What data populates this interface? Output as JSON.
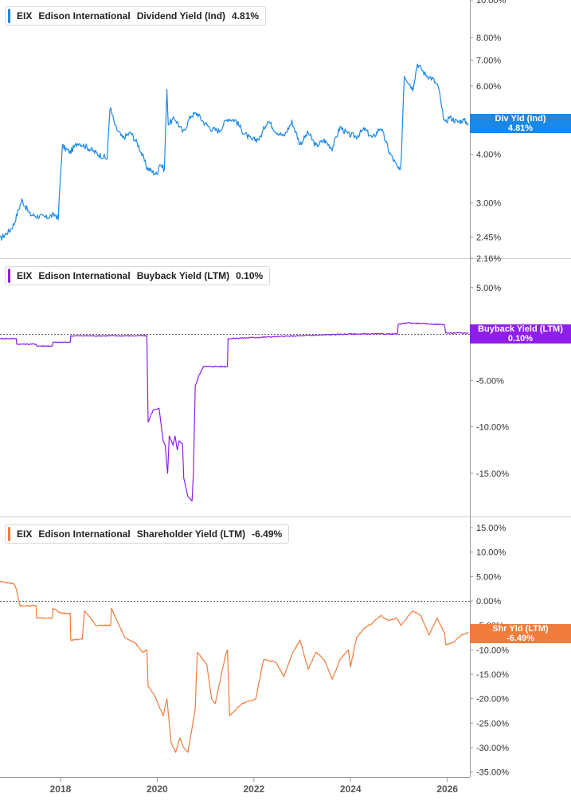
{
  "colors": {
    "dividend": "#1a88e8",
    "buyback": "#8f1fe8",
    "shareholder": "#f07c3c",
    "grid": "#d8d8d8",
    "zero_line": "#666666"
  },
  "x_axis": {
    "ticks": [
      "2018",
      "2020",
      "2022",
      "2024",
      "2026"
    ],
    "range": [
      "2016-10-01",
      "2026-06-20"
    ]
  },
  "panels": [
    {
      "legend": {
        "ticker": "EIX",
        "company": "Edison International",
        "metric": "Dividend Yield (Ind)",
        "value": "4.81%"
      },
      "badge": {
        "label": "Div Yld (Ind)",
        "value": "4.81%"
      }
    },
    {
      "legend": {
        "ticker": "EIX",
        "company": "Edison International",
        "metric": "Buyback Yield (LTM)",
        "value": "0.10%"
      },
      "badge": {
        "label": "Buyback Yield (LTM)",
        "value": "0.10%"
      }
    },
    {
      "legend": {
        "ticker": "EIX",
        "company": "Edison International",
        "metric": "Shareholder Yield (LTM)",
        "value": "-6.49%"
      },
      "badge": {
        "label": "Shr Yld (LTM)",
        "value": "-6.49%"
      }
    }
  ],
  "chart_data": [
    {
      "type": "line",
      "title": "EIX Edison International Dividend Yield (Ind)",
      "y_scale": "log",
      "y_ticks": [
        "10.00%",
        "8.00%",
        "7.00%",
        "6.00%",
        "4.00%",
        "3.00%",
        "2.45%",
        "2.16%"
      ],
      "y_tick_values": [
        10.0,
        8.0,
        7.0,
        6.0,
        4.0,
        3.0,
        2.45,
        2.16
      ],
      "series": [
        {
          "name": "Dividend Yield (Ind)",
          "x": [
            "2016-10-01",
            "2016-12-15",
            "2017-01-15",
            "2017-03-15",
            "2017-05-15",
            "2017-06-30",
            "2017-09-15",
            "2017-11-25",
            "2017-12-15",
            "2018-01-15",
            "2018-03-15",
            "2018-05-15",
            "2018-08-01",
            "2018-10-15",
            "2018-12-20",
            "2019-01-10",
            "2019-02-20",
            "2019-04-15",
            "2019-06-15",
            "2019-08-15",
            "2019-10-15",
            "2019-11-30",
            "2019-12-30",
            "2020-01-20",
            "2020-02-25",
            "2020-03-15",
            "2020-03-25",
            "2020-05-15",
            "2020-07-15",
            "2020-09-15",
            "2020-10-30",
            "2020-12-15",
            "2021-02-15",
            "2021-04-15",
            "2021-06-15",
            "2021-08-15",
            "2021-10-15",
            "2021-12-15",
            "2022-02-15",
            "2022-04-15",
            "2022-06-15",
            "2022-08-15",
            "2022-10-15",
            "2022-12-15",
            "2023-02-15",
            "2023-04-15",
            "2023-06-15",
            "2023-08-15",
            "2023-10-15",
            "2023-12-15",
            "2024-02-15",
            "2024-04-15",
            "2024-06-15",
            "2024-08-15",
            "2024-10-20",
            "2024-12-20",
            "2025-01-10",
            "2025-01-20",
            "2025-02-10",
            "2025-04-15",
            "2025-05-20",
            "2025-07-15",
            "2025-09-15",
            "2025-10-30",
            "2025-11-20",
            "2025-12-15",
            "2026-01-15",
            "2026-03-15",
            "2026-05-01",
            "2026-06-10"
          ],
          "values": [
            2.42,
            2.55,
            2.65,
            3.05,
            2.8,
            2.78,
            2.75,
            2.8,
            2.72,
            4.2,
            4.05,
            4.3,
            4.15,
            4.0,
            3.9,
            5.3,
            4.7,
            4.4,
            4.55,
            4.2,
            3.7,
            3.6,
            3.55,
            3.8,
            3.65,
            5.8,
            4.8,
            4.95,
            4.55,
            5.05,
            5.1,
            4.85,
            4.65,
            4.6,
            4.95,
            4.9,
            4.55,
            4.35,
            4.4,
            4.9,
            4.6,
            4.45,
            4.85,
            4.25,
            4.55,
            4.2,
            4.35,
            4.15,
            4.7,
            4.5,
            4.45,
            4.65,
            4.4,
            4.7,
            4.05,
            3.7,
            3.6,
            4.05,
            6.4,
            5.9,
            6.85,
            6.45,
            6.25,
            5.9,
            5.2,
            4.8,
            5.0,
            4.85,
            4.9,
            4.81
          ]
        }
      ]
    },
    {
      "type": "line",
      "title": "EIX Edison International Buyback Yield (LTM)",
      "y_ticks": [
        "5.00%",
        "-5.00%",
        "-10.00%",
        "-15.00%"
      ],
      "y_tick_values": [
        5,
        -5,
        -10,
        -15
      ],
      "ylim": [
        -20,
        8
      ],
      "series": [
        {
          "name": "Buyback Yield (LTM)",
          "x": [
            "2016-10-01",
            "2017-02-01",
            "2017-02-05",
            "2017-07-01",
            "2017-07-05",
            "2017-11-01",
            "2017-11-05",
            "2018-03-15",
            "2018-03-20",
            "2019-10-15",
            "2019-10-25",
            "2019-12-01",
            "2020-01-15",
            "2020-02-15",
            "2020-03-01",
            "2020-03-20",
            "2020-04-01",
            "2020-05-01",
            "2020-05-15",
            "2020-06-01",
            "2020-06-15",
            "2020-07-10",
            "2020-07-20",
            "2020-08-20",
            "2020-09-20",
            "2020-10-01",
            "2020-10-15",
            "2020-11-01",
            "2020-11-10",
            "2020-12-15",
            "2021-03-01",
            "2021-06-15",
            "2021-06-20",
            "2022-06-01",
            "2024-01-01",
            "2024-12-20",
            "2024-12-25",
            "2025-03-01",
            "2025-12-10",
            "2025-12-20",
            "2026-06-10"
          ],
          "values": [
            -0.5,
            -0.5,
            -1.1,
            -1.1,
            -1.3,
            -1.3,
            -0.9,
            -0.9,
            -0.2,
            -0.2,
            -9.5,
            -8.2,
            -8.0,
            -11.5,
            -12.0,
            -15.0,
            -11.0,
            -12.0,
            -11.0,
            -12.5,
            -11.5,
            -11.8,
            -15.5,
            -17.5,
            -18.0,
            -15.0,
            -5.5,
            -5.0,
            -4.5,
            -3.5,
            -3.5,
            -3.5,
            -0.5,
            -0.3,
            0.0,
            0.0,
            1.0,
            1.2,
            1.0,
            0.1,
            0.1
          ]
        }
      ]
    },
    {
      "type": "line",
      "title": "EIX Edison International Shareholder Yield (LTM)",
      "y_ticks": [
        "15.00%",
        "10.00%",
        "5.00%",
        "0.00%",
        "-5.00%",
        "-10.00%",
        "-15.00%",
        "-20.00%",
        "-25.00%",
        "-30.00%",
        "-35.00%"
      ],
      "y_tick_values": [
        15,
        10,
        5,
        0,
        -5,
        -10,
        -15,
        -20,
        -25,
        -30,
        -35
      ],
      "ylim": [
        -36,
        16
      ],
      "series": [
        {
          "name": "Shareholder Yield (LTM)",
          "x": [
            "2016-10-01",
            "2017-01-15",
            "2017-02-01",
            "2017-03-01",
            "2017-07-01",
            "2017-07-05",
            "2017-11-01",
            "2017-11-05",
            "2018-01-01",
            "2018-03-15",
            "2018-03-20",
            "2018-06-15",
            "2018-07-01",
            "2018-09-15",
            "2018-09-20",
            "2019-01-15",
            "2019-01-20",
            "2019-05-01",
            "2019-07-15",
            "2019-09-15",
            "2019-10-15",
            "2019-10-25",
            "2019-12-15",
            "2020-02-15",
            "2020-03-15",
            "2020-04-15",
            "2020-05-20",
            "2020-06-20",
            "2020-07-20",
            "2020-08-20",
            "2020-10-15",
            "2020-10-30",
            "2021-01-10",
            "2021-02-15",
            "2021-03-15",
            "2021-06-01",
            "2021-06-15",
            "2021-07-01",
            "2021-10-01",
            "2022-01-15",
            "2022-03-15",
            "2022-06-15",
            "2022-08-15",
            "2022-10-15",
            "2022-12-15",
            "2023-02-15",
            "2023-04-15",
            "2023-06-15",
            "2023-08-15",
            "2023-10-15",
            "2023-12-15",
            "2024-01-01",
            "2024-02-15",
            "2024-04-15",
            "2024-06-15",
            "2024-08-15",
            "2024-10-15",
            "2024-12-15",
            "2025-01-15",
            "2025-02-15",
            "2025-04-15",
            "2025-06-15",
            "2025-08-15",
            "2025-10-15",
            "2025-12-10",
            "2025-12-20",
            "2026-02-15",
            "2026-04-15",
            "2026-06-10"
          ],
          "values": [
            4.0,
            3.5,
            2.5,
            -1.0,
            -1.0,
            -3.5,
            -3.5,
            -1.5,
            -2.5,
            -2.5,
            -8.0,
            -7.8,
            -2.0,
            -4.5,
            -5.0,
            -5.0,
            -1.5,
            -7.5,
            -8.5,
            -10.5,
            -10.0,
            -17.5,
            -19.5,
            -23.5,
            -20.0,
            -29.0,
            -31.0,
            -28.0,
            -30.0,
            -31.0,
            -22.0,
            -10.5,
            -13.0,
            -20.0,
            -21.0,
            -11.0,
            -10.0,
            -23.5,
            -21.0,
            -20.0,
            -12.0,
            -12.5,
            -15.5,
            -11.0,
            -8.0,
            -14.0,
            -10.5,
            -12.0,
            -16.0,
            -12.0,
            -10.0,
            -13.5,
            -7.5,
            -5.5,
            -4.5,
            -3.0,
            -4.0,
            -3.5,
            -5.0,
            -4.0,
            -2.0,
            -3.0,
            -7.0,
            -3.5,
            -6.5,
            -9.0,
            -8.5,
            -7.0,
            -6.49
          ]
        }
      ]
    }
  ]
}
